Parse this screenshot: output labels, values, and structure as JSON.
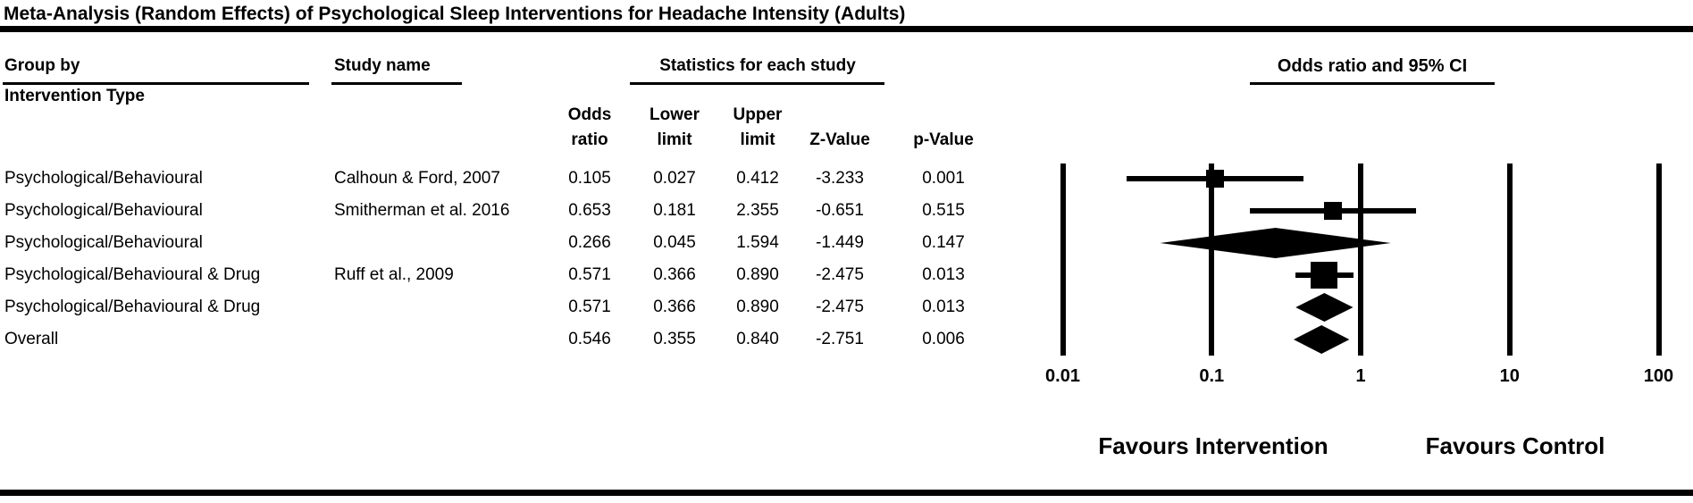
{
  "title": "Meta-Analysis (Random Effects) of Psychological Sleep Interventions for Headache Intensity (Adults)",
  "table": {
    "headers": {
      "group_by_line1": "Group by",
      "group_by_line2": "Intervention Type",
      "study_name": "Study name",
      "statistics": "Statistics for each study",
      "plot_title": "Odds ratio and 95% CI",
      "col_odds_line1": "Odds",
      "col_odds_line2": "ratio",
      "col_lower_line1": "Lower",
      "col_lower_line2": "limit",
      "col_upper_line1": "Upper",
      "col_upper_line2": "limit",
      "col_z": "Z-Value",
      "col_p": "p-Value"
    },
    "rows": [
      {
        "group": "Psychological/Behavioural",
        "study": "Calhoun & Ford, 2007",
        "or": "0.105",
        "lower": "0.027",
        "upper": "0.412",
        "z": "-3.233",
        "p": "0.001"
      },
      {
        "group": "Psychological/Behavioural",
        "study": "Smitherman et al. 2016",
        "or": "0.653",
        "lower": "0.181",
        "upper": "2.355",
        "z": "-0.651",
        "p": "0.515"
      },
      {
        "group": "Psychological/Behavioural",
        "study": "",
        "or": "0.266",
        "lower": "0.045",
        "upper": "1.594",
        "z": "-1.449",
        "p": "0.147"
      },
      {
        "group": "Psychological/Behavioural & Drug",
        "study": "Ruff et al., 2009",
        "or": "0.571",
        "lower": "0.366",
        "upper": "0.890",
        "z": "-2.475",
        "p": "0.013"
      },
      {
        "group": "Psychological/Behavioural & Drug",
        "study": "",
        "or": "0.571",
        "lower": "0.366",
        "upper": "0.890",
        "z": "-2.475",
        "p": "0.013"
      },
      {
        "group": "Overall",
        "study": "",
        "or": "0.546",
        "lower": "0.355",
        "upper": "0.840",
        "z": "-2.751",
        "p": "0.006"
      }
    ]
  },
  "chart_data": {
    "type": "forest",
    "title": "Odds ratio and 95% CI",
    "x_scale": "log10",
    "xlim": [
      0.01,
      100
    ],
    "x_ticks": [
      0.01,
      0.1,
      1,
      10,
      100
    ],
    "x_tick_labels": [
      "0.01",
      "0.1",
      "1",
      "10",
      "100"
    ],
    "grid": "vertical-reference-lines",
    "marker_color": "#000000",
    "series": [
      {
        "label": "Psychological/Behavioural",
        "study": "Calhoun & Ford, 2007",
        "odds_ratio": 0.105,
        "ci_lower": 0.027,
        "ci_upper": 0.412,
        "z": -3.233,
        "p": 0.001,
        "marker": "square",
        "marker_size": 20
      },
      {
        "label": "Psychological/Behavioural",
        "study": "Smitherman et al. 2016",
        "odds_ratio": 0.653,
        "ci_lower": 0.181,
        "ci_upper": 2.355,
        "z": -0.651,
        "p": 0.515,
        "marker": "square",
        "marker_size": 20
      },
      {
        "label": "Psychological/Behavioural subtotal",
        "study": "",
        "odds_ratio": 0.266,
        "ci_lower": 0.045,
        "ci_upper": 1.594,
        "z": -1.449,
        "p": 0.147,
        "marker": "diamond",
        "marker_size": 34
      },
      {
        "label": "Psychological/Behavioural & Drug",
        "study": "Ruff et al., 2009",
        "odds_ratio": 0.571,
        "ci_lower": 0.366,
        "ci_upper": 0.89,
        "z": -2.475,
        "p": 0.013,
        "marker": "square",
        "marker_size": 30
      },
      {
        "label": "Psychological/Behavioural & Drug subtotal",
        "study": "",
        "odds_ratio": 0.571,
        "ci_lower": 0.366,
        "ci_upper": 0.89,
        "z": -2.475,
        "p": 0.013,
        "marker": "diamond",
        "marker_size": 32
      },
      {
        "label": "Overall",
        "study": "",
        "odds_ratio": 0.546,
        "ci_lower": 0.355,
        "ci_upper": 0.84,
        "z": -2.751,
        "p": 0.006,
        "marker": "diamond",
        "marker_size": 32
      }
    ],
    "footer": {
      "favours_left": "Favours Intervention",
      "favours_right": "Favours Control"
    }
  }
}
